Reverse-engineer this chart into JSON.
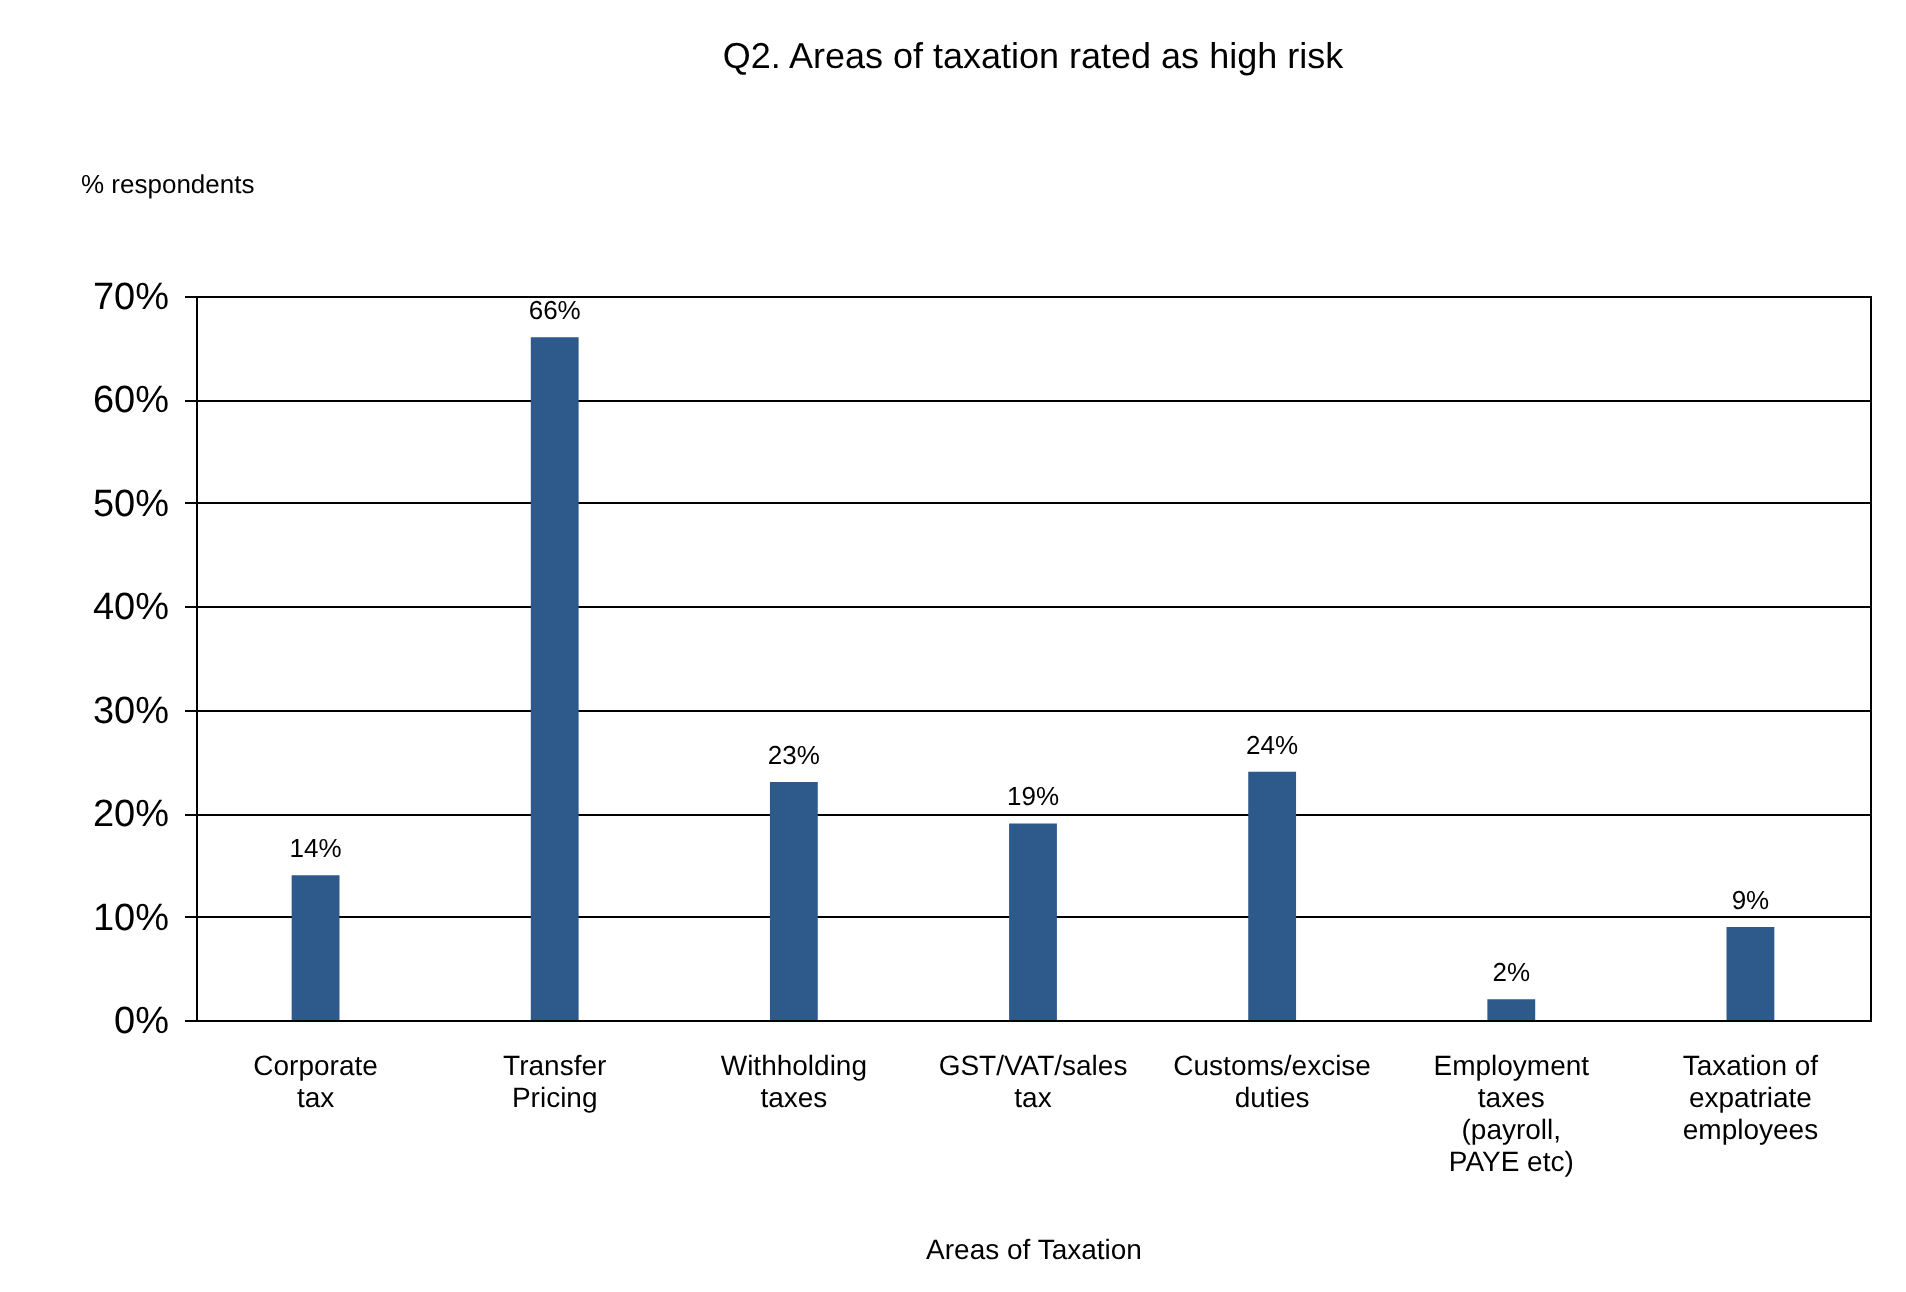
{
  "chart_data": {
    "type": "bar",
    "title": "Q2. Areas of taxation rated as high risk",
    "xlabel": "Areas of Taxation",
    "ylabel": "% respondents",
    "categories": [
      "Corporate tax",
      "Transfer Pricing",
      "Withholding taxes",
      "GST/VAT/sales tax",
      "Customs/excise duties",
      "Employment taxes (payroll, PAYE etc)",
      "Taxation of expatriate employees"
    ],
    "values": [
      14,
      66,
      23,
      19,
      24,
      2,
      9
    ],
    "value_labels": [
      "14%",
      "66%",
      "23%",
      "19%",
      "24%",
      "2%",
      "9%"
    ],
    "color": "#2e5a8b",
    "ylim": [
      0,
      70
    ],
    "yticks": [
      {
        "value": 0,
        "label": "0%"
      },
      {
        "value": 10,
        "label": "10%"
      },
      {
        "value": 20,
        "label": "20%"
      },
      {
        "value": 30,
        "label": "30%"
      },
      {
        "value": 40,
        "label": "40%"
      },
      {
        "value": 50,
        "label": "50%"
      },
      {
        "value": 60,
        "label": "60%"
      },
      {
        "value": 70,
        "label": "70%"
      }
    ],
    "grid": "y"
  }
}
